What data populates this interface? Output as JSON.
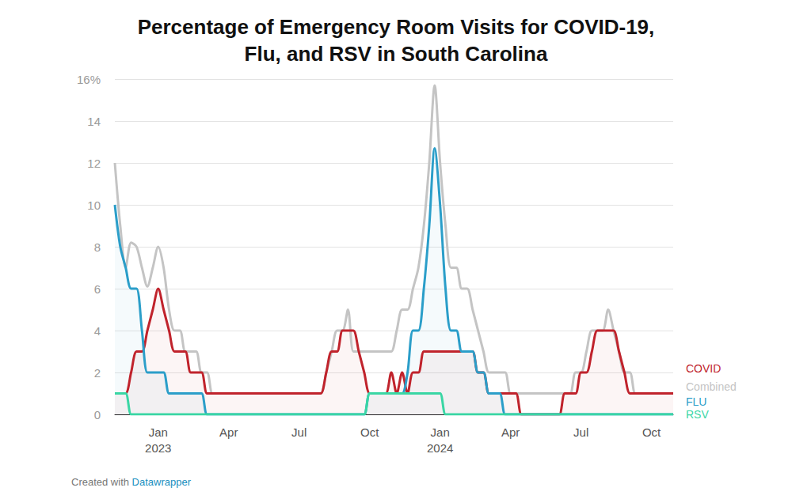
{
  "chart_data": {
    "type": "line",
    "title": "Percentage of Emergency Room Visits for COVID-19,\nFlu, and RSV in South Carolina",
    "credit": "Created with Datawrapper",
    "categories": [
      null,
      null,
      null,
      null,
      null,
      null,
      null,
      null,
      "Jan\n2023",
      null,
      null,
      null,
      null,
      null,
      null,
      null,
      null,
      null,
      null,
      null,
      null,
      "Apr",
      null,
      null,
      null,
      null,
      null,
      null,
      null,
      null,
      null,
      null,
      null,
      null,
      "Jul",
      null,
      null,
      null,
      null,
      null,
      null,
      null,
      null,
      null,
      null,
      null,
      null,
      "Oct",
      null,
      null,
      null,
      null,
      null,
      null,
      null,
      null,
      null,
      null,
      null,
      null,
      "Jan\n2024",
      null,
      null,
      null,
      null,
      null,
      null,
      null,
      null,
      null,
      null,
      null,
      null,
      "Apr",
      null,
      null,
      null,
      null,
      null,
      null,
      null,
      null,
      null,
      null,
      null,
      null,
      "Jul",
      null,
      null,
      null,
      null,
      null,
      null,
      null,
      null,
      null,
      null,
      null,
      null,
      "Oct",
      null,
      null,
      null,
      null
    ],
    "series": [
      {
        "name": "Combined",
        "color": "#c4c4c4",
        "values": [
          12,
          9,
          7,
          8.2,
          8,
          7,
          6.1,
          7,
          8,
          7,
          5,
          4,
          4,
          3,
          3,
          3,
          2,
          2,
          1,
          1,
          1,
          1,
          1,
          1,
          1,
          1,
          1,
          1,
          1,
          1,
          1,
          1,
          1,
          1,
          1,
          1,
          1,
          1,
          1,
          2,
          3,
          4,
          4,
          5,
          3,
          3,
          3,
          3,
          3,
          3,
          3,
          3,
          4,
          5,
          5,
          6,
          7,
          9,
          12,
          15.7,
          12,
          9,
          7,
          7,
          6,
          6,
          5,
          4,
          3,
          2,
          2,
          2,
          2,
          1,
          1,
          1,
          1,
          1,
          1,
          1,
          1,
          1,
          1,
          1,
          1,
          2,
          2,
          3,
          4,
          4,
          4,
          5,
          4,
          3,
          2,
          2,
          1,
          1,
          1,
          1,
          1,
          1,
          1,
          1
        ]
      },
      {
        "name": "COVID",
        "color": "#c0232c",
        "values": [
          1,
          1,
          1,
          2,
          3,
          3,
          4,
          5,
          6,
          5,
          4,
          3,
          3,
          3,
          2,
          2,
          2,
          1,
          1,
          1,
          1,
          1,
          1,
          1,
          1,
          1,
          1,
          1,
          1,
          1,
          1,
          1,
          1,
          1,
          1,
          1,
          1,
          1,
          1,
          2,
          3,
          3,
          4,
          4,
          4,
          3,
          2,
          1,
          1,
          1,
          1,
          2,
          1,
          2,
          1,
          2,
          2,
          3,
          3,
          3,
          3,
          3,
          3,
          3,
          3,
          3,
          3,
          2,
          2,
          1,
          1,
          1,
          1,
          1,
          1,
          0,
          0,
          0,
          0,
          0,
          0,
          0,
          0,
          1,
          1,
          1,
          2,
          2,
          3,
          4,
          4,
          4,
          4,
          3,
          2,
          1,
          1,
          1,
          1,
          1,
          1,
          1,
          1,
          1
        ]
      },
      {
        "name": "FLU",
        "color": "#2b9ec9",
        "values": [
          10,
          8,
          7,
          6,
          6,
          4,
          2,
          2,
          2,
          2,
          1,
          1,
          1,
          1,
          1,
          1,
          1,
          0,
          0,
          0,
          0,
          0,
          0,
          0,
          0,
          0,
          0,
          0,
          0,
          0,
          0,
          0,
          0,
          0,
          0,
          0,
          0,
          0,
          0,
          0,
          0,
          0,
          0,
          0,
          0,
          0,
          0,
          1,
          1,
          1,
          1,
          1,
          1,
          1,
          2,
          4,
          4,
          6,
          9,
          12.7,
          10,
          6,
          4,
          4,
          3,
          3,
          3,
          2,
          2,
          1,
          1,
          1,
          0,
          0,
          0,
          0,
          0,
          0,
          0,
          0,
          0,
          0,
          0,
          0,
          0,
          0,
          0,
          0,
          0,
          0,
          0,
          0,
          0,
          0,
          0,
          0,
          0,
          0,
          0,
          0,
          0,
          0,
          0,
          0
        ]
      },
      {
        "name": "RSV",
        "color": "#3ad6a4",
        "values": [
          1,
          1,
          1,
          0,
          0,
          0,
          0,
          0,
          0,
          0,
          0,
          0,
          0,
          0,
          0,
          0,
          0,
          0,
          0,
          0,
          0,
          0,
          0,
          0,
          0,
          0,
          0,
          0,
          0,
          0,
          0,
          0,
          0,
          0,
          0,
          0,
          0,
          0,
          0,
          0,
          0,
          0,
          0,
          0,
          0,
          0,
          0,
          1,
          1,
          1,
          1,
          1,
          1,
          1,
          1,
          1,
          1,
          1,
          1,
          1,
          1,
          0,
          0,
          0,
          0,
          0,
          0,
          0,
          0,
          0,
          0,
          0,
          0,
          0,
          0,
          0,
          0,
          0,
          0,
          0,
          0,
          0,
          0,
          0,
          0,
          0,
          0,
          0,
          0,
          0,
          0,
          0,
          0,
          0,
          0,
          0,
          0,
          0,
          0,
          0,
          0,
          0,
          0,
          0
        ]
      }
    ],
    "ylim": [
      0,
      16
    ],
    "yticks": [
      0,
      2,
      4,
      6,
      8,
      10,
      12,
      14,
      {
        "value": 16,
        "label": "16%"
      }
    ],
    "grid": true
  }
}
